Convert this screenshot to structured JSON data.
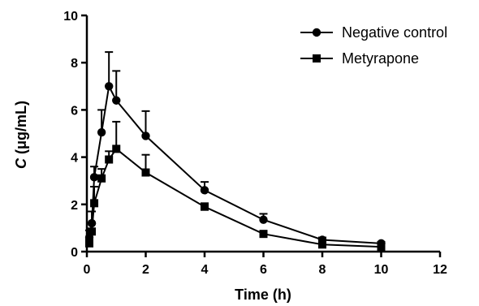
{
  "chart_data": {
    "type": "line",
    "xlabel": "Time (h)",
    "ylabel_symbol": "C",
    "ylabel_unit": " (μg/mL)",
    "xlim": [
      0,
      12
    ],
    "ylim": [
      0,
      10
    ],
    "xticks": [
      0,
      2,
      4,
      6,
      8,
      10,
      12
    ],
    "yticks": [
      0,
      2,
      4,
      6,
      8,
      10
    ],
    "grid": false,
    "legend_position": "top-right",
    "colors": {
      "line": "#000000"
    },
    "series": [
      {
        "name": "Negative control",
        "marker": "circle",
        "x": [
          0.083,
          0.167,
          0.25,
          0.5,
          0.75,
          1,
          2,
          4,
          6,
          8,
          10
        ],
        "y": [
          0.6,
          1.2,
          3.15,
          5.05,
          7.0,
          6.4,
          4.9,
          2.6,
          1.35,
          0.5,
          0.35
        ],
        "err": [
          0.3,
          0.5,
          0.45,
          0.95,
          1.45,
          1.25,
          1.05,
          0.35,
          0.25,
          0.1,
          0.06
        ]
      },
      {
        "name": "Metyrapone",
        "marker": "square",
        "x": [
          0.083,
          0.167,
          0.25,
          0.5,
          0.75,
          1,
          2,
          4,
          6,
          8,
          10
        ],
        "y": [
          0.35,
          0.85,
          2.05,
          3.1,
          3.9,
          4.35,
          3.35,
          1.9,
          0.75,
          0.3,
          0.2
        ],
        "err": [
          0.2,
          0.35,
          0.7,
          0.4,
          0.35,
          1.15,
          0.75,
          0.15,
          0.1,
          0.05,
          0.04
        ]
      }
    ]
  }
}
